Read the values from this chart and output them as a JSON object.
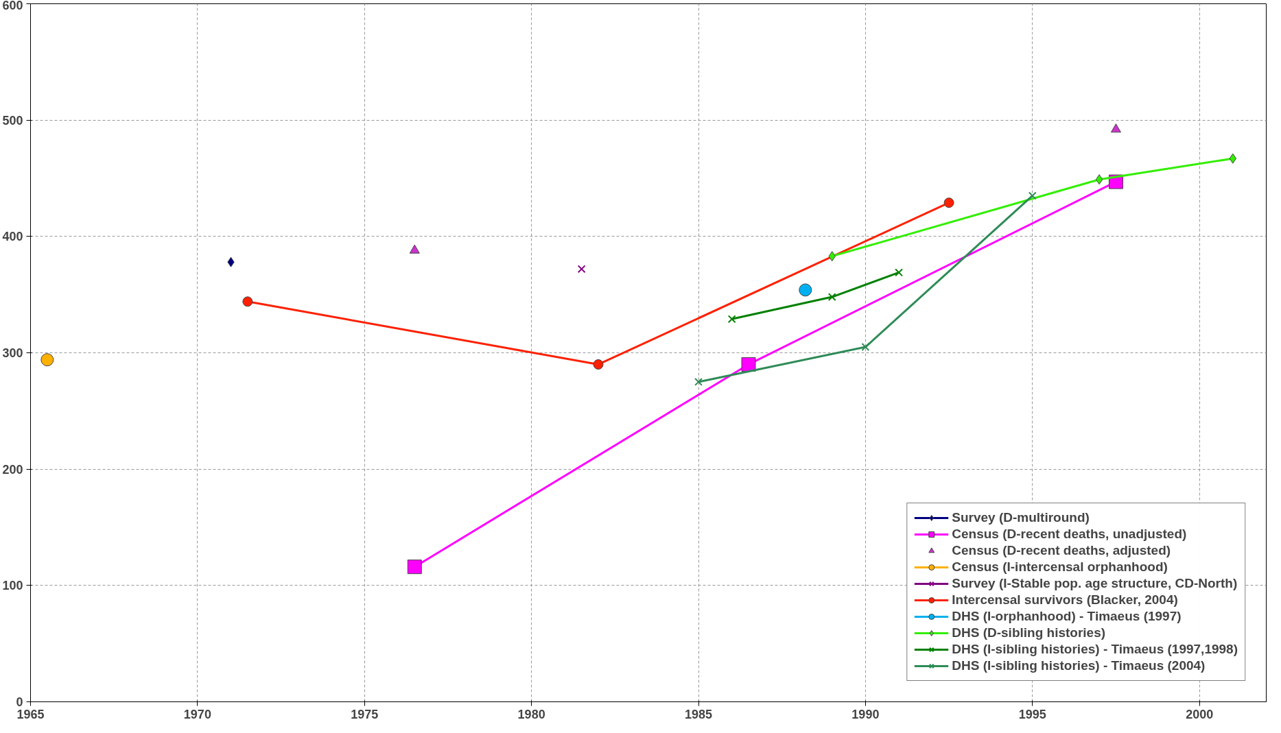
{
  "chart_data": {
    "type": "line",
    "xlim": [
      1965,
      2002
    ],
    "ylim": [
      0,
      600
    ],
    "xticks": [
      1965,
      1970,
      1975,
      1980,
      1985,
      1990,
      1995,
      2000
    ],
    "yticks": [
      0,
      100,
      200,
      300,
      400,
      500,
      600
    ],
    "grid": true,
    "legend": "bottom right",
    "series": [
      {
        "name": "Survey (D-multiround)",
        "marker": "diamond",
        "color": "#000080",
        "x": [
          1971
        ],
        "values": [
          378
        ]
      },
      {
        "name": "Census (D-recent deaths, unadjusted)",
        "marker": "square",
        "color": "#ff00ff",
        "x": [
          1976.5,
          1986.5,
          1997.5
        ],
        "values": [
          116,
          290,
          447
        ]
      },
      {
        "name": "Census (D-recent deaths, adjusted)",
        "type": "scatter",
        "marker": "triangle",
        "color": "#cc33cc",
        "x": [
          1976.5,
          1997.5
        ],
        "values": [
          388,
          492
        ]
      },
      {
        "name": "Census (I-intercensal orphanhood)",
        "marker": "circle",
        "color": "#ffb000",
        "x": [
          1965.5
        ],
        "values": [
          294
        ]
      },
      {
        "name": "Survey (I-Stable pop. age structure, CD-North)",
        "marker": "cross",
        "color": "#800080",
        "x": [
          1981.5
        ],
        "values": [
          372
        ]
      },
      {
        "name": "Intercensal survivors (Blacker, 2004)",
        "marker": "circle",
        "color": "#ff2000",
        "x": [
          1971.5,
          1982,
          1992.5
        ],
        "values": [
          344,
          290,
          429
        ]
      },
      {
        "name": "DHS (I-orphanhood) - Timaeus (1997)",
        "marker": "circle",
        "color": "#00b0f0",
        "x": [
          1988.2
        ],
        "values": [
          354
        ]
      },
      {
        "name": "DHS (D-sibling histories)",
        "marker": "diamond",
        "color": "#33ee00",
        "x": [
          1989,
          1997,
          2001
        ],
        "values": [
          383,
          449,
          467
        ]
      },
      {
        "name": "DHS (I-sibling histories) - Timaeus (1997,1998)",
        "marker": "cross",
        "color": "#008000",
        "x": [
          1986,
          1989,
          1991
        ],
        "values": [
          329,
          348,
          369
        ]
      },
      {
        "name": "DHS (I-sibling histories) - Timaeus (2004)",
        "marker": "cross",
        "color": "#2e8b57",
        "x": [
          1985,
          1990,
          1995
        ],
        "values": [
          275,
          305,
          435
        ]
      }
    ]
  }
}
